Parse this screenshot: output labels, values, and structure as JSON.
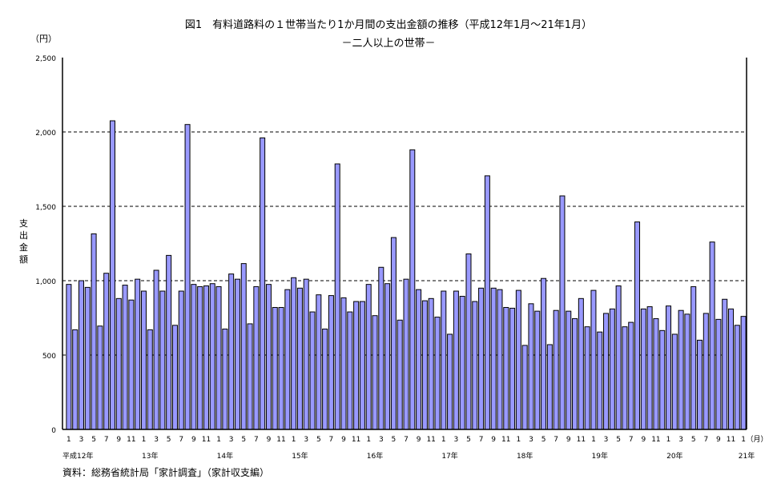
{
  "chart_data": {
    "type": "bar",
    "title": "図1　有料道路料の１世帯当たり1か月間の支出金額の推移（平成12年1月～21年1月）",
    "subtitle": "－二人以上の世帯－",
    "ylabel": "支出金額",
    "yunit": "（円）",
    "xunit": "（月）",
    "ylim": [
      0,
      2500
    ],
    "yticks": [
      0,
      500,
      1000,
      1500,
      2000,
      2500
    ],
    "ytick_labels": [
      "0",
      "500",
      "1,000",
      "1,500",
      "2,000",
      "2,500"
    ],
    "grid": "dashed horizontal",
    "bar_color": "#9999ff",
    "year_labels": [
      "平成12年",
      "13年",
      "14年",
      "15年",
      "16年",
      "17年",
      "18年",
      "19年",
      "20年",
      "21年"
    ],
    "month_tick_labels": [
      "1",
      "3",
      "5",
      "7",
      "9",
      "11"
    ],
    "values": [
      975,
      670,
      1000,
      955,
      1315,
      695,
      1050,
      2075,
      880,
      970,
      870,
      1010,
      930,
      670,
      1070,
      930,
      1170,
      700,
      930,
      2050,
      975,
      960,
      965,
      980,
      960,
      675,
      1045,
      1010,
      1115,
      710,
      960,
      1960,
      975,
      820,
      820,
      940,
      1020,
      950,
      1010,
      790,
      905,
      675,
      900,
      1785,
      885,
      790,
      860,
      860,
      975,
      765,
      1090,
      980,
      1290,
      735,
      1010,
      1880,
      940,
      865,
      880,
      755,
      930,
      640,
      930,
      895,
      1180,
      860,
      950,
      1705,
      950,
      940,
      820,
      815,
      935,
      565,
      845,
      795,
      1015,
      570,
      800,
      1570,
      795,
      745,
      880,
      690,
      935,
      655,
      780,
      810,
      965,
      690,
      720,
      1395,
      810,
      825,
      745,
      665,
      830,
      640,
      800,
      775,
      960,
      600,
      780,
      1260,
      740,
      875,
      810,
      700,
      760
    ]
  },
  "source": "資料：総務省統計局「家計調査」（家計収支編）"
}
